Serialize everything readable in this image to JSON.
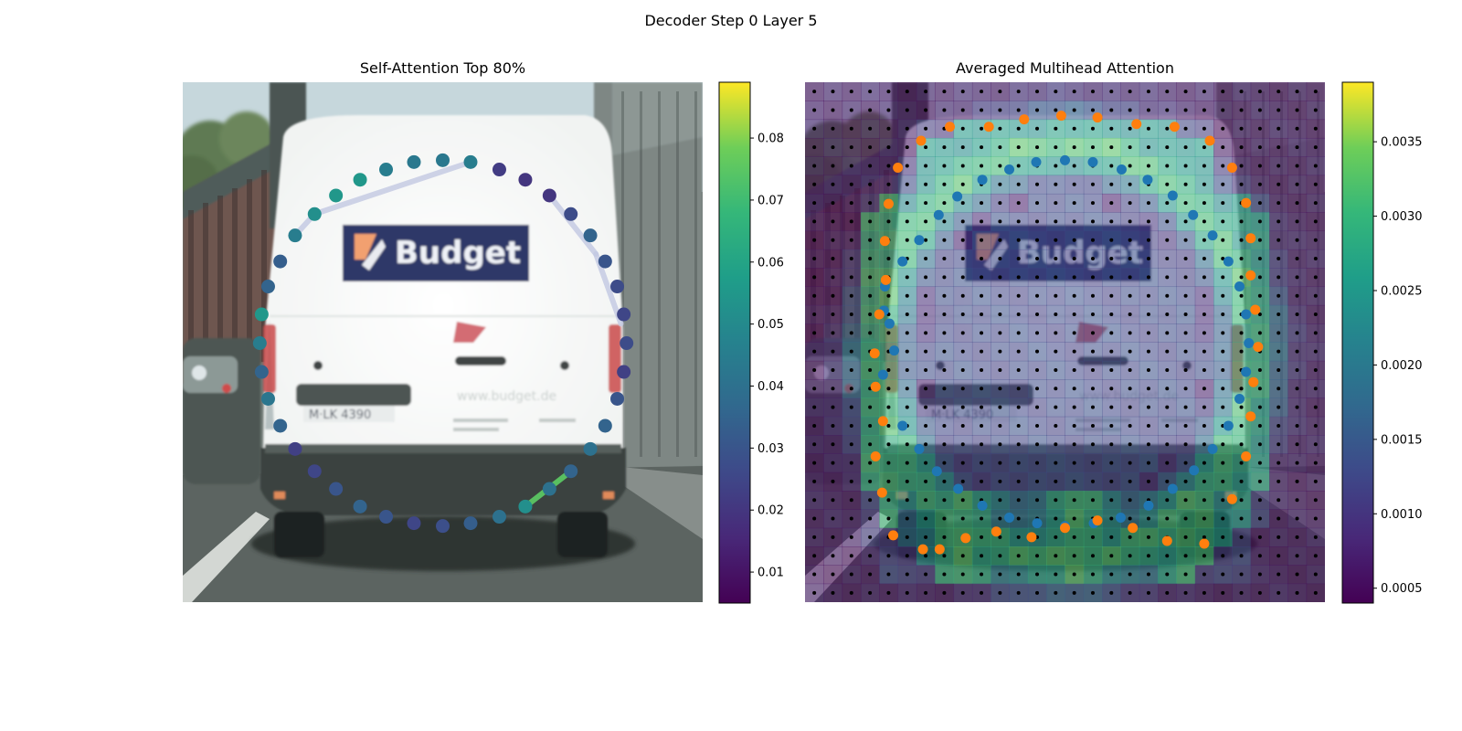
{
  "figure": {
    "title": "Decoder Step 0 Layer 5"
  },
  "panels": [
    {
      "title": "Self-Attention Top 80%",
      "background": "Blurred street photograph of a white van with a \"Budget\" logo",
      "colorbar": {
        "ticks": [
          "0.01",
          "0.02",
          "0.03",
          "0.04",
          "0.05",
          "0.06",
          "0.07",
          "0.08"
        ],
        "range": [
          0.005,
          0.089
        ]
      }
    },
    {
      "title": "Averaged Multihead Attention",
      "background": "Same van photograph overlaid with a coarse attention heat grid",
      "colorbar": {
        "ticks": [
          "0.0005",
          "0.0010",
          "0.0015",
          "0.0020",
          "0.0025",
          "0.0030",
          "0.0035"
        ],
        "range": [
          0.0004,
          0.0039
        ]
      }
    }
  ],
  "chart_data": [
    {
      "type": "scatter",
      "title": "Self-Attention Top 80%",
      "xlim": [
        0,
        56
      ],
      "ylim": [
        56,
        0
      ],
      "colormap": "viridis",
      "points": [
        {
          "x": 8.5,
          "y": 25.0,
          "v": 0.055
        },
        {
          "x": 9.2,
          "y": 22.0,
          "v": 0.035
        },
        {
          "x": 10.5,
          "y": 19.3,
          "v": 0.033
        },
        {
          "x": 12.1,
          "y": 16.5,
          "v": 0.045
        },
        {
          "x": 14.2,
          "y": 14.2,
          "v": 0.052
        },
        {
          "x": 16.5,
          "y": 12.2,
          "v": 0.055
        },
        {
          "x": 19.1,
          "y": 10.5,
          "v": 0.055
        },
        {
          "x": 21.9,
          "y": 9.4,
          "v": 0.045
        },
        {
          "x": 24.9,
          "y": 8.6,
          "v": 0.043
        },
        {
          "x": 28.0,
          "y": 8.4,
          "v": 0.043
        },
        {
          "x": 31.0,
          "y": 8.6,
          "v": 0.045
        },
        {
          "x": 34.1,
          "y": 9.4,
          "v": 0.022
        },
        {
          "x": 36.9,
          "y": 10.5,
          "v": 0.02
        },
        {
          "x": 39.5,
          "y": 12.2,
          "v": 0.02
        },
        {
          "x": 41.8,
          "y": 14.2,
          "v": 0.027
        },
        {
          "x": 43.9,
          "y": 16.5,
          "v": 0.035
        },
        {
          "x": 45.5,
          "y": 19.3,
          "v": 0.03
        },
        {
          "x": 46.8,
          "y": 22.0,
          "v": 0.027
        },
        {
          "x": 47.5,
          "y": 25.0,
          "v": 0.025
        },
        {
          "x": 47.8,
          "y": 28.1,
          "v": 0.027
        },
        {
          "x": 47.5,
          "y": 31.2,
          "v": 0.023
        },
        {
          "x": 46.8,
          "y": 34.1,
          "v": 0.03
        },
        {
          "x": 45.5,
          "y": 37.0,
          "v": 0.035
        },
        {
          "x": 43.9,
          "y": 39.5,
          "v": 0.04
        },
        {
          "x": 41.8,
          "y": 41.9,
          "v": 0.035
        },
        {
          "x": 39.5,
          "y": 43.8,
          "v": 0.04
        },
        {
          "x": 36.9,
          "y": 45.7,
          "v": 0.052
        },
        {
          "x": 34.1,
          "y": 46.8,
          "v": 0.04
        },
        {
          "x": 31.0,
          "y": 47.5,
          "v": 0.033
        },
        {
          "x": 28.0,
          "y": 47.8,
          "v": 0.028
        },
        {
          "x": 24.9,
          "y": 47.5,
          "v": 0.025
        },
        {
          "x": 21.9,
          "y": 46.8,
          "v": 0.03
        },
        {
          "x": 19.1,
          "y": 45.7,
          "v": 0.035
        },
        {
          "x": 16.5,
          "y": 43.8,
          "v": 0.03
        },
        {
          "x": 14.2,
          "y": 41.9,
          "v": 0.025
        },
        {
          "x": 12.1,
          "y": 39.5,
          "v": 0.023
        },
        {
          "x": 10.5,
          "y": 37.0,
          "v": 0.035
        },
        {
          "x": 9.2,
          "y": 34.1,
          "v": 0.042
        },
        {
          "x": 8.5,
          "y": 31.2,
          "v": 0.035
        },
        {
          "x": 8.3,
          "y": 28.1,
          "v": 0.045
        }
      ],
      "links": [
        {
          "from": [
            14.2,
            14.2
          ],
          "to": [
            31.0,
            8.6
          ],
          "v": 0.045
        },
        {
          "from": [
            39.5,
            12.2
          ],
          "to": [
            44.5,
            18.5
          ],
          "v": 0.04
        },
        {
          "from": [
            44.5,
            18.5
          ],
          "to": [
            47.2,
            26.0
          ],
          "v": 0.04
        },
        {
          "from": [
            36.9,
            45.7
          ],
          "to": [
            41.8,
            41.9
          ],
          "v": 0.075
        },
        {
          "from": [
            12.1,
            16.5
          ],
          "to": [
            14.2,
            14.2
          ],
          "v": 0.04
        }
      ]
    },
    {
      "type": "scatter",
      "title": "Averaged Multihead Attention",
      "xlim": [
        0,
        56
      ],
      "ylim": [
        56,
        0
      ],
      "colormap": "viridis",
      "series": [
        {
          "name": "",
          "color": "#1f77b4",
          "points": [
            [
              8.6,
              22.0
            ],
            [
              9.1,
              26.0
            ],
            [
              9.6,
              28.9
            ],
            [
              8.4,
              31.5
            ],
            [
              8.5,
              24.6
            ],
            [
              10.5,
              19.3
            ],
            [
              12.3,
              17.0
            ],
            [
              14.4,
              14.3
            ],
            [
              16.4,
              12.3
            ],
            [
              19.1,
              10.5
            ],
            [
              22.0,
              9.4
            ],
            [
              24.9,
              8.6
            ],
            [
              28.0,
              8.4
            ],
            [
              31.0,
              8.6
            ],
            [
              34.1,
              9.4
            ],
            [
              36.9,
              10.5
            ],
            [
              39.6,
              12.2
            ],
            [
              41.8,
              14.3
            ],
            [
              43.9,
              16.5
            ],
            [
              45.6,
              19.3
            ],
            [
              46.8,
              22.0
            ],
            [
              47.5,
              25.0
            ],
            [
              47.8,
              28.1
            ],
            [
              47.5,
              31.2
            ],
            [
              46.8,
              34.1
            ],
            [
              45.6,
              37.0
            ],
            [
              43.9,
              39.5
            ],
            [
              41.9,
              41.8
            ],
            [
              39.6,
              43.8
            ],
            [
              37.0,
              45.6
            ],
            [
              34.0,
              46.9
            ],
            [
              31.1,
              47.5
            ],
            [
              28.0,
              47.8
            ],
            [
              25.0,
              47.5
            ],
            [
              22.0,
              46.9
            ],
            [
              19.1,
              45.6
            ],
            [
              16.5,
              43.8
            ],
            [
              14.2,
              41.9
            ],
            [
              12.3,
              39.5
            ],
            [
              10.5,
              37.0
            ]
          ]
        },
        {
          "name": "",
          "color": "#ff7f0e",
          "points": [
            [
              12.5,
              6.3
            ],
            [
              15.6,
              4.8
            ],
            [
              19.8,
              4.8
            ],
            [
              23.6,
              4.0
            ],
            [
              27.6,
              3.6
            ],
            [
              31.5,
              3.8
            ],
            [
              35.7,
              4.5
            ],
            [
              39.8,
              4.8
            ],
            [
              43.6,
              6.3
            ],
            [
              46.0,
              9.2
            ],
            [
              47.5,
              13.0
            ],
            [
              48.0,
              16.8
            ],
            [
              48.5,
              24.5
            ],
            [
              48.0,
              20.8
            ],
            [
              48.8,
              28.5
            ],
            [
              48.3,
              32.3
            ],
            [
              48.0,
              36.0
            ],
            [
              47.5,
              40.3
            ],
            [
              46.0,
              44.9
            ],
            [
              43.0,
              49.7
            ],
            [
              39.0,
              49.4
            ],
            [
              35.3,
              48.0
            ],
            [
              31.5,
              47.2
            ],
            [
              28.0,
              48.0
            ],
            [
              24.4,
              49.0
            ],
            [
              20.6,
              48.4
            ],
            [
              17.3,
              49.1
            ],
            [
              14.5,
              50.3
            ],
            [
              12.7,
              50.3
            ],
            [
              9.5,
              48.8
            ],
            [
              8.3,
              44.2
            ],
            [
              7.6,
              40.3
            ],
            [
              8.4,
              36.5
            ],
            [
              7.6,
              32.8
            ],
            [
              7.5,
              29.2
            ],
            [
              8.0,
              25.0
            ],
            [
              8.7,
              21.3
            ],
            [
              8.6,
              17.1
            ],
            [
              9.0,
              13.1
            ],
            [
              10.0,
              9.2
            ]
          ]
        }
      ],
      "grid_points": "black dots on a regular 2-unit lattice across the image"
    }
  ]
}
